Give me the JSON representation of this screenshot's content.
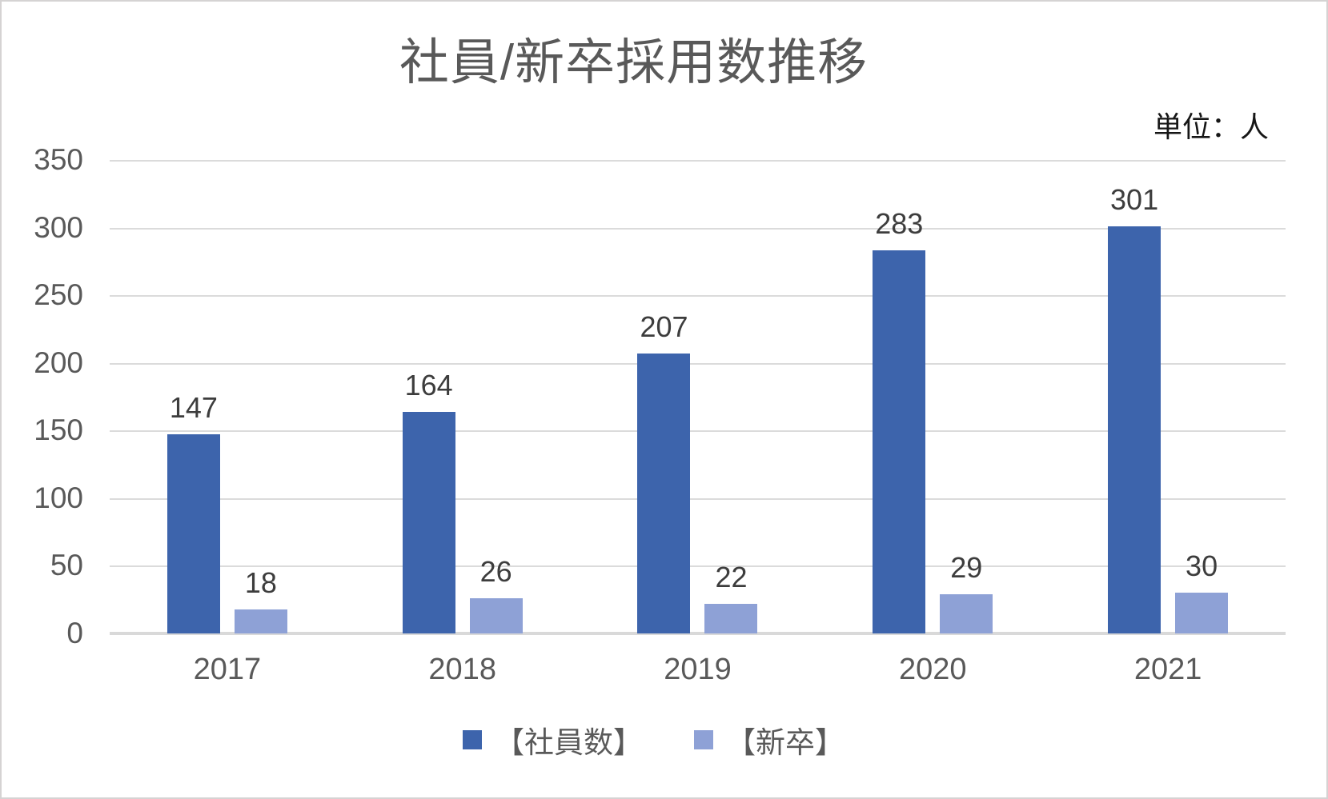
{
  "chart": {
    "title": "社員/新卒採用数推移",
    "unit_label": "単位：人"
  },
  "chart_data": {
    "type": "bar",
    "title": "社員/新卒採用数推移",
    "unit_label": "単位：人",
    "categories": [
      "2017",
      "2018",
      "2019",
      "2020",
      "2021"
    ],
    "series": [
      {
        "key": "employees",
        "name": "【社員数】",
        "color": "#3D64AC",
        "values": [
          147,
          164,
          207,
          283,
          301
        ]
      },
      {
        "key": "new-grads",
        "name": "【新卒】",
        "color": "#8EA1D6",
        "values": [
          18,
          26,
          22,
          29,
          30
        ]
      }
    ],
    "y_ticks": [
      0,
      50,
      100,
      150,
      200,
      250,
      300,
      350
    ],
    "ylim": [
      0,
      350
    ],
    "xlabel": "",
    "ylabel": "",
    "grid": true,
    "data_labels": true,
    "legend_position": "bottom",
    "colors": {
      "gridline": "#D9D9D9",
      "axis_text": "#595959",
      "data_label_text": "#3D3D3D",
      "title_text": "#595959",
      "unit_text": "#161616",
      "background": "#FFFFFF",
      "border": "#D5D3D3"
    }
  }
}
